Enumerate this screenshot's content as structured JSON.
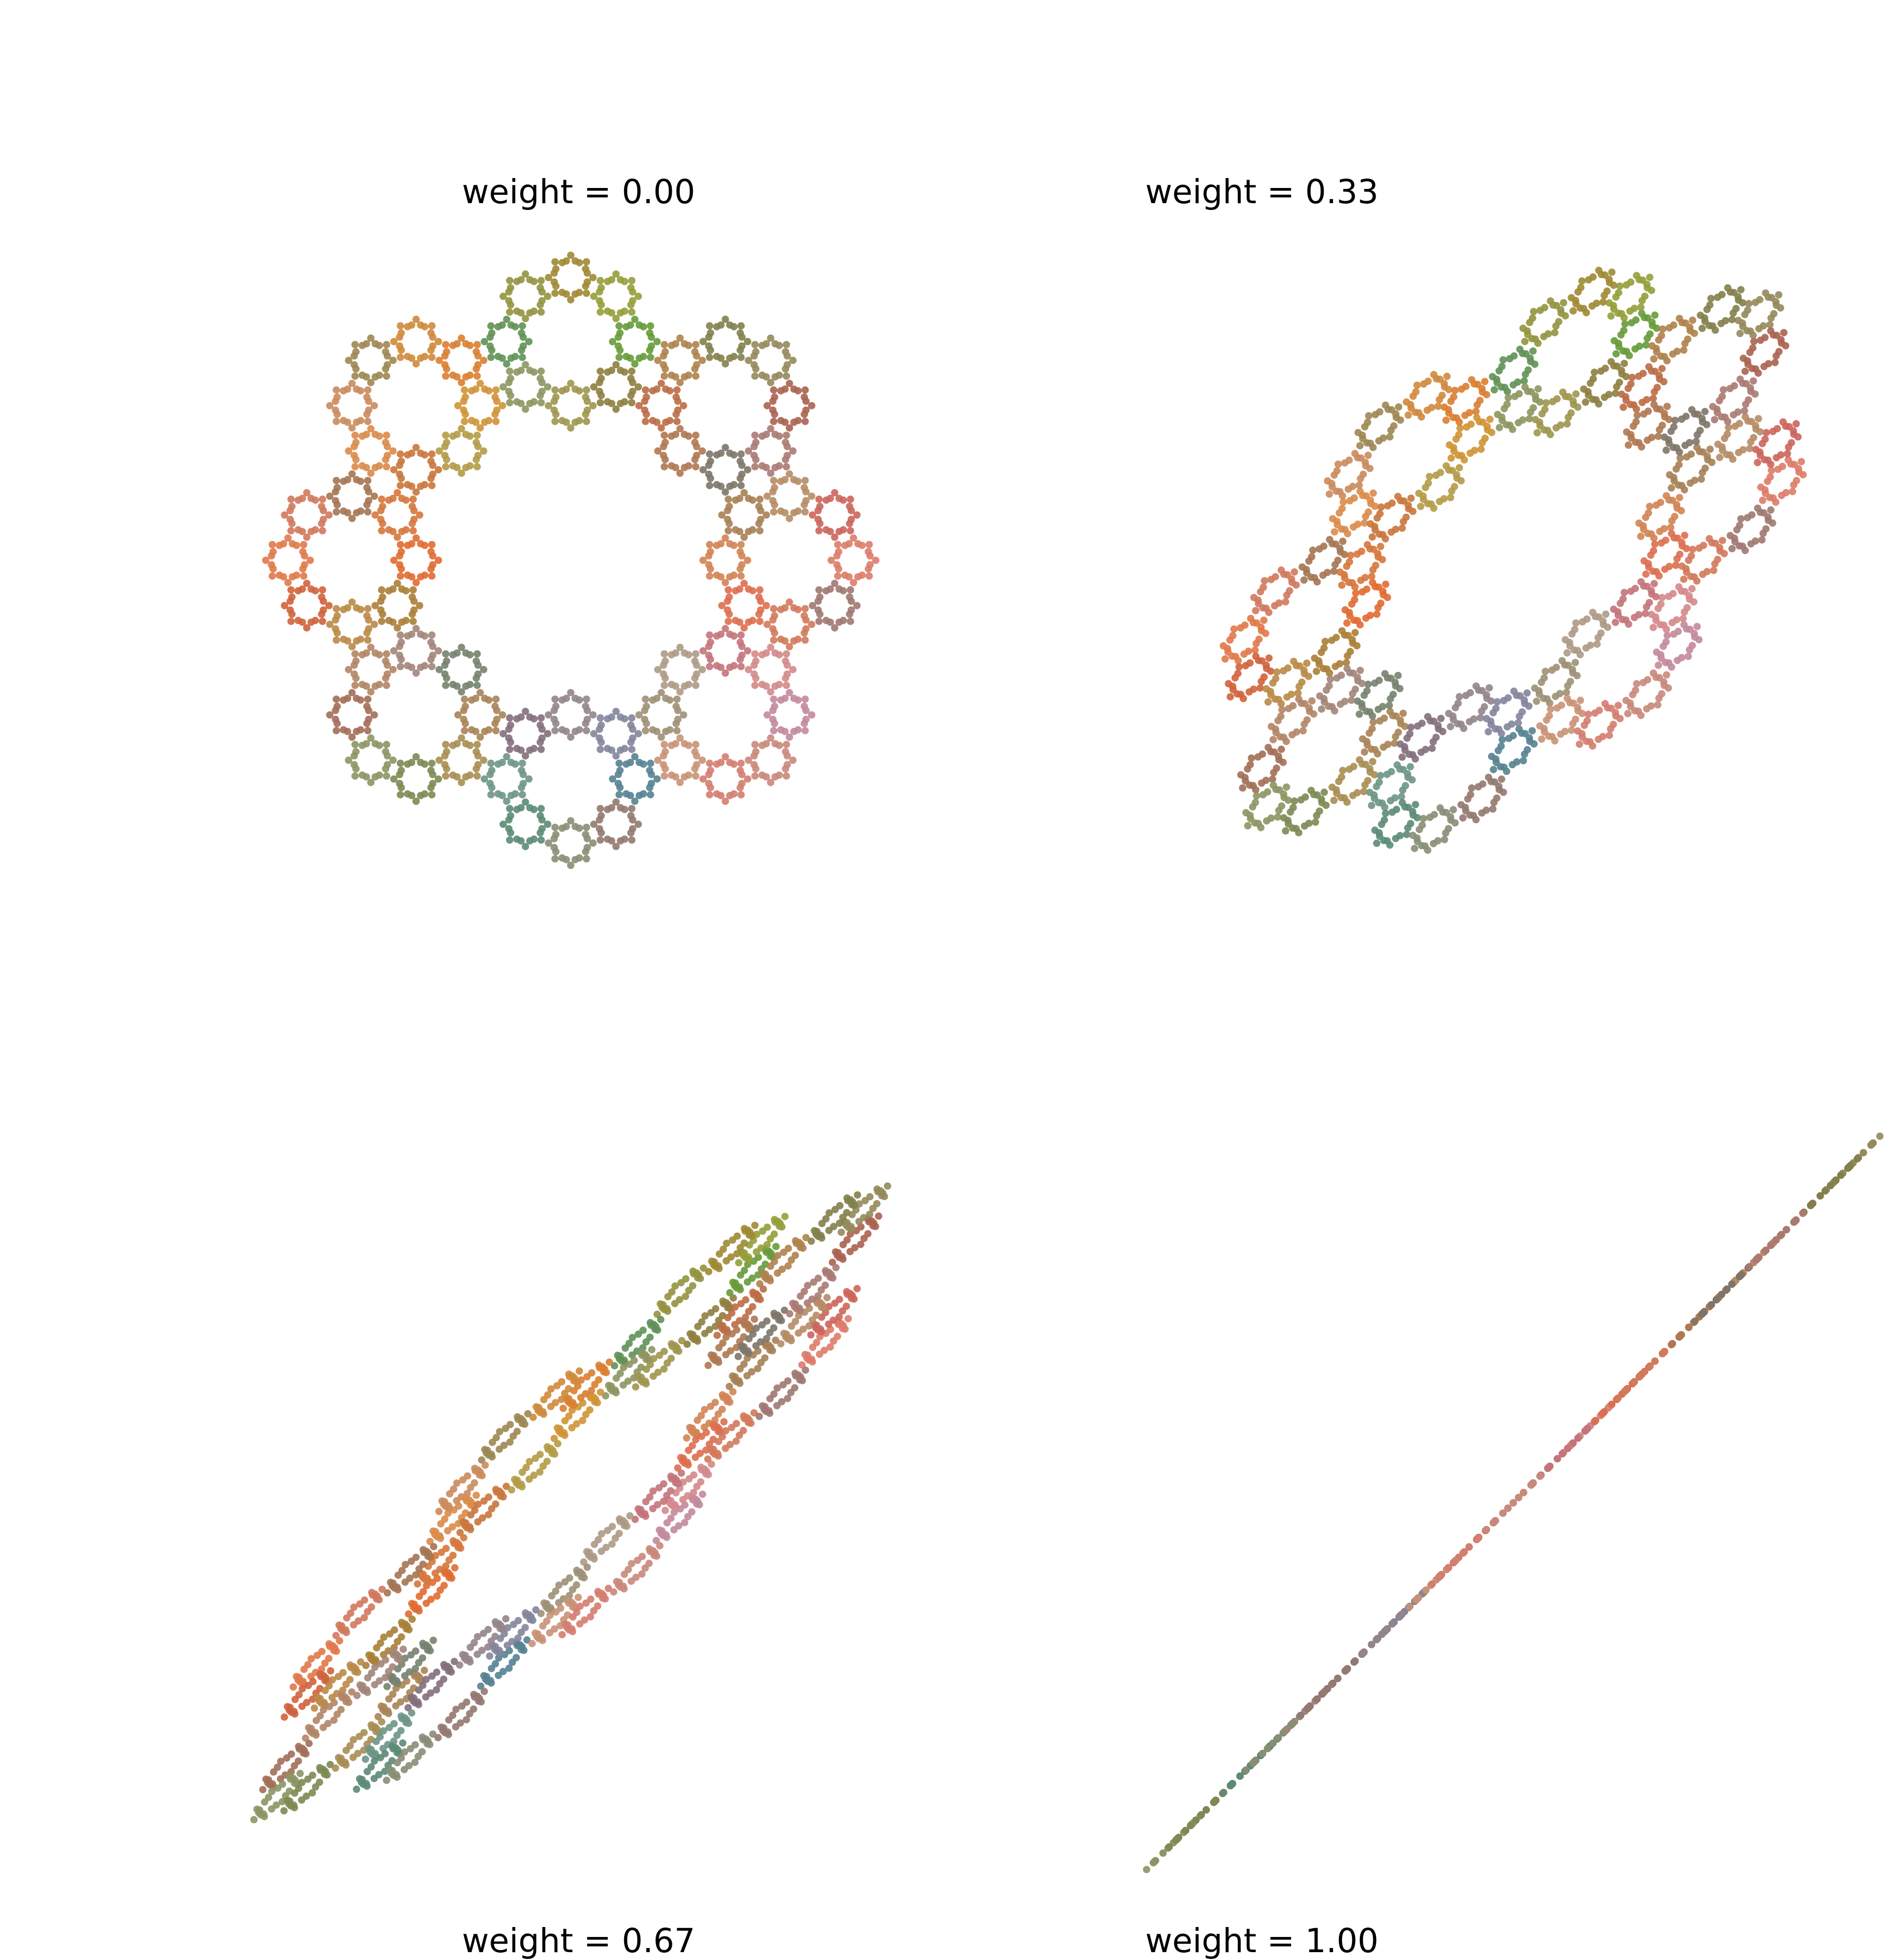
{
  "figure": {
    "background": "#ffffff"
  },
  "chart_data": [
    {
      "type": "scatter",
      "title": "weight = 0.00",
      "weight": 0.0,
      "axes_visible": false,
      "grid": false,
      "structure": {
        "rings": 8,
        "sub_rings_per_ring": 8,
        "points_per_sub_ring": 8
      },
      "ring_colors": [
        "#4a9a3a",
        "#c8a13a",
        "#e8652a",
        "#c8854a",
        "#3a7f8a",
        "#b88aa8",
        "#e88a72",
        "#b84a4a",
        "#7ab86a"
      ]
    },
    {
      "type": "scatter",
      "title": "weight = 0.33",
      "weight": 0.33,
      "axes_visible": false,
      "grid": false,
      "structure": {
        "rings": 8,
        "sub_rings_per_ring": 8,
        "points_per_sub_ring": 8
      },
      "ring_colors": [
        "#4a9a3a",
        "#c8a13a",
        "#e8652a",
        "#c8854a",
        "#3a7f8a",
        "#b88aa8",
        "#e88a72",
        "#b84a4a",
        "#7ab86a"
      ]
    },
    {
      "type": "scatter",
      "title": "weight = 0.67",
      "weight": 0.67,
      "axes_visible": false,
      "grid": false,
      "structure": {
        "rings": 8,
        "sub_rings_per_ring": 8,
        "points_per_sub_ring": 8
      },
      "ring_colors": [
        "#4a9a3a",
        "#c8a13a",
        "#e8652a",
        "#c8854a",
        "#3a7f8a",
        "#b88aa8",
        "#e88a72",
        "#b84a4a",
        "#7ab86a"
      ]
    },
    {
      "type": "scatter",
      "title": "weight = 1.00",
      "weight": 1.0,
      "axes_visible": false,
      "grid": false,
      "structure": {
        "rings": 8,
        "sub_rings_per_ring": 8,
        "points_per_sub_ring": 8
      },
      "ring_colors": [
        "#4a9a3a",
        "#c8a13a",
        "#e8652a",
        "#c8854a",
        "#3a7f8a",
        "#b88aa8",
        "#e88a72",
        "#b84a4a",
        "#7ab86a"
      ]
    }
  ]
}
